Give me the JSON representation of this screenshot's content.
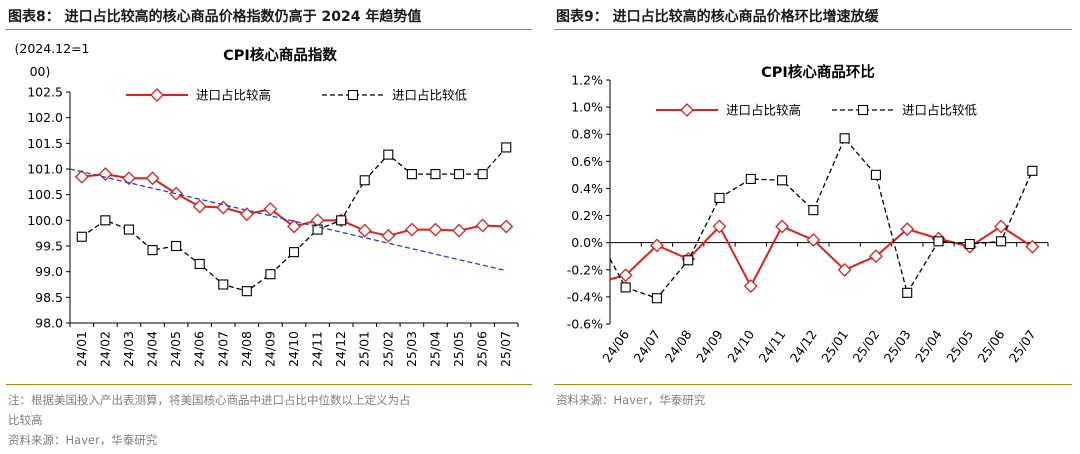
{
  "left": {
    "figure_title": "图表8：  进口占比较高的核心商品价格指数仍高于 2024 年趋势值",
    "notes": [
      "注：根据美国投入产出表测算，将美国核心商品中进口占比中位数以上定义为占",
      "比较高"
    ],
    "source": "资料来源：Haver，华泰研究",
    "chart_data": {
      "type": "line",
      "title": "CPI核心商品指数",
      "ylabel_lines": [
        "(2024.12=1",
        "00)"
      ],
      "categories": [
        "24/01",
        "24/02",
        "24/03",
        "24/04",
        "24/05",
        "24/06",
        "24/07",
        "24/08",
        "24/09",
        "24/10",
        "24/11",
        "24/12",
        "25/01",
        "25/02",
        "25/03",
        "25/04",
        "25/05",
        "25/06",
        "25/07"
      ],
      "ylim": [
        98.0,
        102.5
      ],
      "yticks": [
        "98.0",
        "98.5",
        "99.0",
        "99.5",
        "100.0",
        "100.5",
        "101.0",
        "101.5",
        "102.0",
        "102.5"
      ],
      "legend_position": "top",
      "series": [
        {
          "name": "进口占比较高",
          "color": "#e0201b",
          "marker": "diamond",
          "dash": "solid",
          "values": [
            100.85,
            100.9,
            100.82,
            100.82,
            100.52,
            100.27,
            100.25,
            100.12,
            100.22,
            99.88,
            100.0,
            100.0,
            99.8,
            99.7,
            99.82,
            99.82,
            99.8,
            99.9,
            99.88
          ]
        },
        {
          "name": "进口占比较低",
          "color": "#000000",
          "marker": "square",
          "dash": "dashed",
          "values": [
            99.68,
            100.0,
            99.82,
            99.42,
            99.5,
            99.15,
            98.75,
            98.62,
            98.95,
            99.38,
            99.82,
            100.0,
            100.78,
            101.28,
            100.9,
            100.9,
            100.9,
            100.9,
            101.42
          ]
        },
        {
          "name": "",
          "color": "#1f3fe0",
          "marker": "none",
          "dash": "dashed",
          "values": [
            101.0,
            100.89,
            100.78,
            100.67,
            100.56,
            100.45,
            100.34,
            100.23,
            100.12,
            100.01,
            99.9,
            99.79,
            99.68,
            99.57,
            99.46,
            99.35,
            99.24,
            99.13,
            99.02
          ]
        }
      ]
    }
  },
  "right": {
    "figure_title": "图表9：  进口占比较高的核心商品价格环比增速放缓",
    "source": "资料来源：Haver，华泰研究",
    "chart_data": {
      "type": "line",
      "title": "CPI核心商品环比",
      "categories": [
        "24/06",
        "24/07",
        "24/08",
        "24/09",
        "24/10",
        "24/11",
        "24/12",
        "25/01",
        "25/02",
        "25/03",
        "25/04",
        "25/05",
        "25/06",
        "25/07"
      ],
      "ylim": [
        -0.6,
        1.2
      ],
      "yticks": [
        "-0.6%",
        "-0.4%",
        "-0.2%",
        "0.0%",
        "0.2%",
        "0.4%",
        "0.6%",
        "0.8%",
        "1.0%",
        "1.2%"
      ],
      "legend_position": "top",
      "series": [
        {
          "name": "进口占比较高",
          "color": "#e0201b",
          "marker": "diamond",
          "dash": "solid",
          "values": [
            -0.24,
            -0.02,
            -0.12,
            0.12,
            -0.32,
            0.12,
            0.02,
            -0.2,
            -0.1,
            0.1,
            0.03,
            -0.03,
            0.12,
            -0.03
          ]
        },
        {
          "name": "进口占比较低",
          "color": "#000000",
          "marker": "square",
          "dash": "dashed",
          "values": [
            -0.33,
            -0.41,
            -0.13,
            0.33,
            0.47,
            0.46,
            0.24,
            0.77,
            0.5,
            -0.37,
            0.01,
            -0.01,
            0.01,
            0.53
          ]
        }
      ]
    }
  }
}
